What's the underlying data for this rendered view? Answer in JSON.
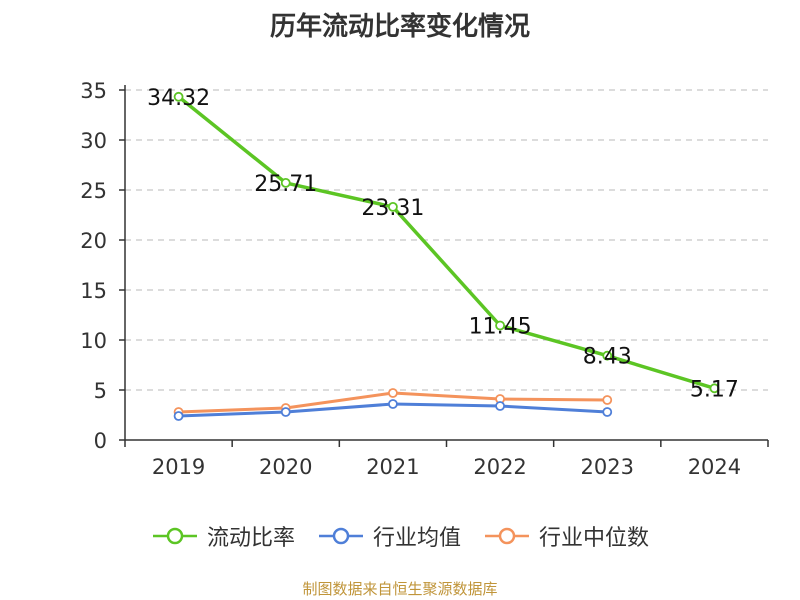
{
  "page": {
    "title": "历年流动比率变化情况",
    "source": "制图数据来自恒生聚源数据库"
  },
  "chart_data": {
    "type": "line",
    "title": "历年流动比率变化情况",
    "categories": [
      "2019",
      "2020",
      "2021",
      "2022",
      "2023",
      "2024"
    ],
    "y_ticks": [
      "0",
      "5",
      "10",
      "15",
      "20",
      "25",
      "30",
      "35"
    ],
    "ylim": [
      0,
      35
    ],
    "grid": true,
    "legend_position": "bottom",
    "series": [
      {
        "name": "流动比率",
        "color": "#5cc524",
        "values": [
          34.32,
          25.71,
          23.31,
          11.45,
          8.43,
          5.17
        ],
        "labels": [
          "34.32",
          "25.71",
          "23.31",
          "11.45",
          "8.43",
          "5.17"
        ]
      },
      {
        "name": "行业均值",
        "color": "#4f7fd8",
        "values": [
          2.4,
          2.8,
          3.6,
          3.4,
          2.8,
          null
        ]
      },
      {
        "name": "行业中位数",
        "color": "#f4935c",
        "values": [
          2.8,
          3.2,
          4.7,
          4.1,
          4.0,
          null
        ]
      }
    ]
  }
}
